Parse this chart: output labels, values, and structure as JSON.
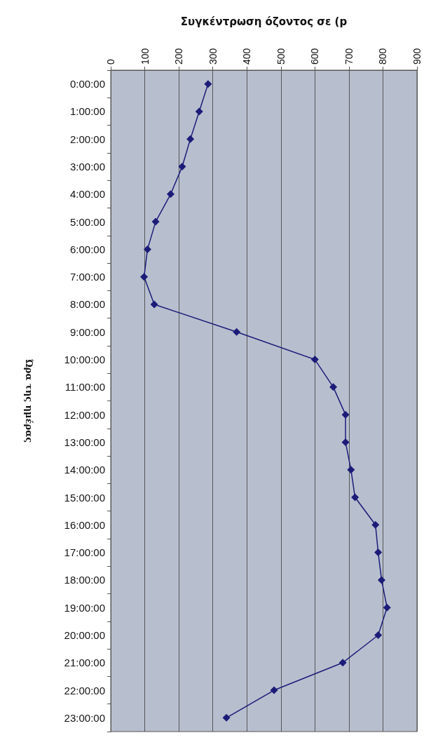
{
  "chart_data": {
    "type": "line",
    "orientation": "horizontal",
    "xlabel": "Συγκέντρωση όζοντος σε (p",
    "ylabel": "Ώρα της ημέρας",
    "categories": [
      "0:00:00",
      "1:00:00",
      "2:00:00",
      "3:00:00",
      "4:00:00",
      "5:00:00",
      "6:00:00",
      "7:00:00",
      "8:00:00",
      "9:00:00",
      "10:00:00",
      "11:00:00",
      "12:00:00",
      "13:00:00",
      "14:00:00",
      "15:00:00",
      "16:00:00",
      "17:00:00",
      "18:00:00",
      "19:00:00",
      "20:00:00",
      "21:00:00",
      "22:00:00",
      "23:00:00"
    ],
    "series": [
      {
        "color": "#1c1c78",
        "values": [
          286,
          260,
          234,
          210,
          176,
          132,
          108,
          98,
          128,
          370,
          600,
          654,
          690,
          690,
          706,
          718,
          778,
          786,
          796,
          812,
          786,
          682,
          480,
          340
        ]
      }
    ],
    "xlim": [
      0,
      900
    ],
    "xticks": [
      0,
      100,
      200,
      300,
      400,
      500,
      600,
      700,
      800,
      900
    ],
    "grid": "x",
    "marker": "diamond",
    "line_style": "solid"
  }
}
